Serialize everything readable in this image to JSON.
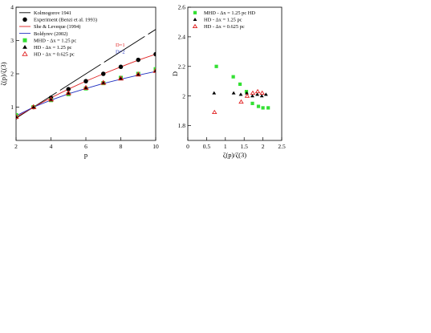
{
  "chart_data": [
    {
      "type": "line",
      "xlabel": "p",
      "ylabel": "ζ(p)/ζ(3)",
      "xlim": [
        2,
        10
      ],
      "ylim": [
        0,
        4
      ],
      "xticks": [
        2,
        4,
        6,
        8,
        10
      ],
      "yticks": [
        1,
        2,
        3,
        4
      ],
      "legend_position": "top-left",
      "lines": [
        {
          "name": "Kolmogorov 1941",
          "color": "#000000",
          "dash": "long",
          "x": [
            2,
            10
          ],
          "y": [
            0.667,
            3.333
          ]
        },
        {
          "name": "She & Leveque (1994)",
          "color": "#e02020",
          "dash": "solid",
          "x": [
            2,
            3,
            4,
            5,
            6,
            7,
            8,
            9,
            10
          ],
          "y": [
            0.696,
            1.0,
            1.28,
            1.54,
            1.78,
            2.0,
            2.21,
            2.41,
            2.59
          ]
        },
        {
          "name": "Boldyrev (2002)",
          "color": "#2030c0",
          "dash": "solid",
          "x": [
            2,
            3,
            4,
            5,
            6,
            7,
            8,
            9,
            10
          ],
          "y": [
            0.74,
            1.0,
            1.21,
            1.4,
            1.56,
            1.71,
            1.84,
            1.96,
            2.07
          ]
        }
      ],
      "annotations": [
        {
          "text": "D=1",
          "color": "#e02020",
          "x": 7.7,
          "y": 2.82
        },
        {
          "text": "D=2",
          "color": "#2030c0",
          "x": 7.7,
          "y": 2.62
        }
      ],
      "series": [
        {
          "name": "Experiment (Benzi et al. 1993)",
          "marker": "circle",
          "color": "#000000",
          "x": [
            2,
            3,
            4,
            5,
            6,
            7,
            8,
            9,
            10
          ],
          "y": [
            0.7,
            1.0,
            1.28,
            1.54,
            1.78,
            2.0,
            2.21,
            2.42,
            2.59
          ]
        },
        {
          "name": "MHD  - Δx = 1.25 pc",
          "marker": "square",
          "color": "#33e033",
          "x": [
            2,
            3,
            4,
            5,
            6,
            7,
            8,
            9,
            10
          ],
          "y": [
            0.76,
            1.0,
            1.21,
            1.39,
            1.56,
            1.72,
            1.88,
            2.0,
            2.14
          ]
        },
        {
          "name": "HD     - Δx = 1.25 pc",
          "marker": "triangle",
          "color": "#000000",
          "x": [
            2,
            3,
            4,
            5,
            6,
            7,
            8,
            9,
            10
          ],
          "y": [
            0.7,
            1.0,
            1.22,
            1.41,
            1.57,
            1.72,
            1.85,
            1.97,
            2.08
          ]
        },
        {
          "name": "HD     - Δx = 0.625 pc",
          "marker": "triangle-open",
          "color": "#e02020",
          "x": [
            2,
            3,
            4,
            5,
            6,
            7,
            8,
            9,
            10
          ],
          "y": [
            0.71,
            1.0,
            1.23,
            1.42,
            1.58,
            1.73,
            1.86,
            1.98,
            2.09
          ]
        }
      ]
    },
    {
      "type": "scatter",
      "xlabel": "ζ(p)/ζ(3)",
      "ylabel": "D",
      "xlim": [
        0,
        2.5
      ],
      "ylim": [
        1.7,
        2.6
      ],
      "xticks": [
        0,
        0.5,
        1,
        1.5,
        2,
        2.5
      ],
      "yticks": [
        1.8,
        2,
        2.2,
        2.4,
        2.6
      ],
      "legend_position": "top-left",
      "series": [
        {
          "name": "MHD  - Δx = 1.25 pc HD",
          "marker": "square",
          "color": "#33e033",
          "x": [
            0.76,
            1.21,
            1.39,
            1.56,
            1.72,
            1.88,
            2.0,
            2.14
          ],
          "y": [
            2.2,
            2.13,
            2.08,
            2.03,
            1.95,
            1.93,
            1.92,
            1.92
          ]
        },
        {
          "name": "HD     - Δx = 1.25 pc",
          "marker": "triangle",
          "color": "#000000",
          "x": [
            0.7,
            1.22,
            1.41,
            1.57,
            1.72,
            1.85,
            1.97,
            2.08
          ],
          "y": [
            2.02,
            2.02,
            2.01,
            2.02,
            2.0,
            2.01,
            2.0,
            2.01
          ]
        },
        {
          "name": "HD     - Δx = 0.625 pc",
          "marker": "triangle-open",
          "color": "#e02020",
          "x": [
            0.71,
            1.42,
            1.58,
            1.73,
            1.86,
            1.98
          ],
          "y": [
            1.89,
            1.96,
            2.0,
            2.02,
            2.03,
            2.02
          ]
        }
      ]
    }
  ]
}
